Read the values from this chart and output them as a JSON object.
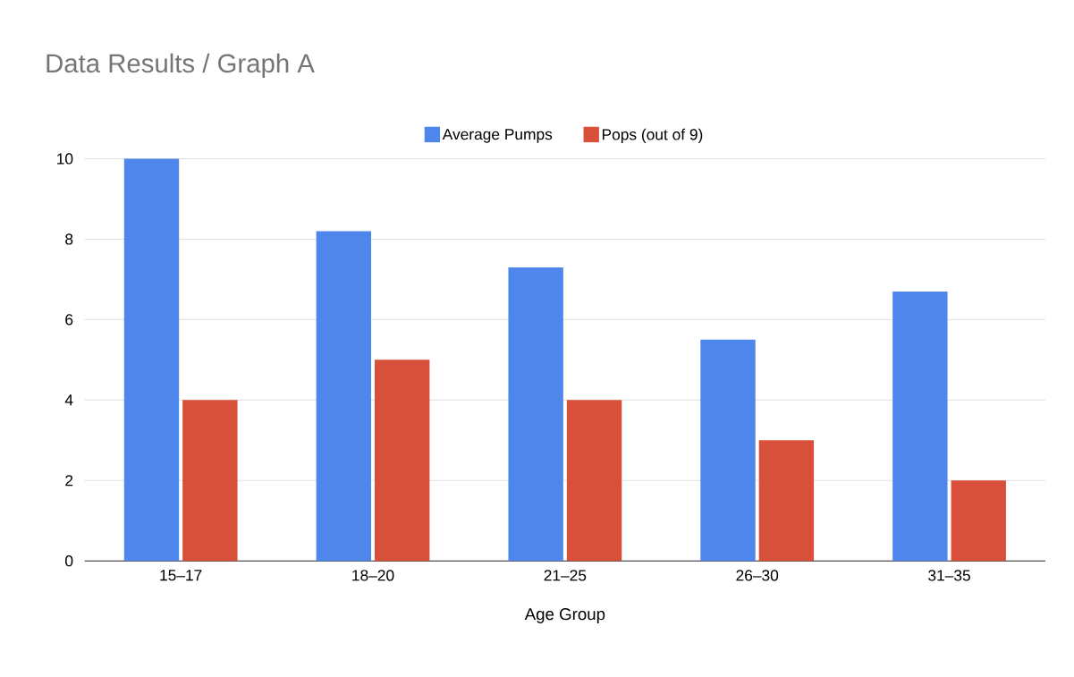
{
  "chart_data": {
    "type": "bar",
    "title": "Data Results / Graph A",
    "xlabel": "Age Group",
    "categories": [
      "15–17",
      "18–20",
      "21–25",
      "26–30",
      "31–35"
    ],
    "series": [
      {
        "name": "Average Pumps",
        "color": "#4f86ec",
        "values": [
          10,
          8.2,
          7.3,
          5.5,
          6.7
        ]
      },
      {
        "name": "Pops (out of 9)",
        "color": "#d9503a",
        "values": [
          4,
          5,
          4,
          3,
          2
        ]
      }
    ],
    "ylim": [
      0,
      10
    ],
    "yticks": [
      0,
      2,
      4,
      6,
      8,
      10
    ],
    "grid": "y",
    "legend": "top"
  }
}
